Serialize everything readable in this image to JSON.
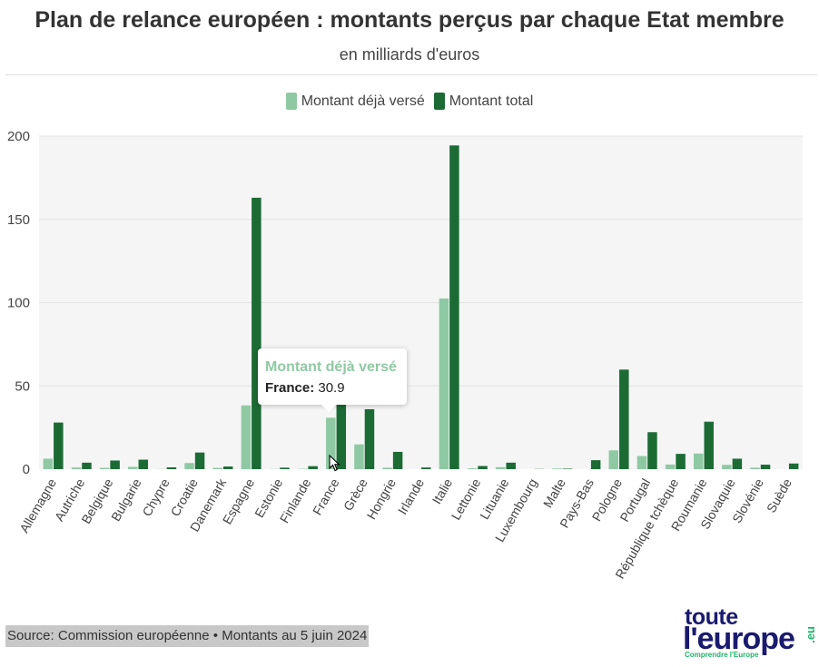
{
  "title": "Plan de relance européen : montants perçus par chaque Etat membre",
  "subtitle": "en milliards d'euros",
  "legend": [
    {
      "label": "Montant déjà versé",
      "color": "#8fc9a3"
    },
    {
      "label": "Montant total",
      "color": "#1c6b35"
    }
  ],
  "tooltip": {
    "title": "Montant déjà versé",
    "country": "France:",
    "value": "30.9",
    "title_color": "#8fc9a3"
  },
  "source": "Source: Commission européenne • Montants au 5 juin 2024",
  "logo": {
    "line1": "toute",
    "line2": "l'europe",
    "tagline": "Comprendre l'Europe",
    "suffix": ".eu"
  },
  "chart_data": {
    "type": "bar",
    "ylim": [
      0,
      200
    ],
    "yticks": [
      0,
      50,
      100,
      150,
      200
    ],
    "grid": true,
    "legend_position": "top-center",
    "categories": [
      "Allemagne",
      "Autriche",
      "Belgique",
      "Bulgarie",
      "Chypre",
      "Croatie",
      "Danemark",
      "Espagne",
      "Estonie",
      "Finlande",
      "France",
      "Grèce",
      "Hongrie",
      "Irlande",
      "Italie",
      "Lettonie",
      "Lituanie",
      "Luxembourg",
      "Malte",
      "Pays-Bas",
      "Pologne",
      "Portugal",
      "République tchèque",
      "Roumanie",
      "Slovaquie",
      "Slovénie",
      "Suède"
    ],
    "series": [
      {
        "name": "Montant déjà versé",
        "color": "#8fc9a3",
        "values": [
          6.3,
          1.0,
          0.8,
          1.4,
          0.1,
          3.7,
          0.8,
          38.3,
          0.1,
          0.2,
          30.9,
          14.9,
          0.9,
          0.0,
          102.5,
          0.5,
          1.2,
          0.0,
          0.4,
          0.0,
          11.3,
          7.9,
          2.8,
          9.4,
          2.6,
          0.9,
          0.0
        ]
      },
      {
        "name": "Montant total",
        "color": "#1c6b35",
        "values": [
          28.0,
          3.9,
          5.2,
          5.7,
          1.1,
          10.0,
          1.6,
          163.0,
          0.9,
          1.8,
          40.3,
          36.0,
          10.4,
          1.0,
          194.4,
          1.9,
          3.9,
          0.1,
          0.3,
          5.4,
          59.8,
          22.2,
          9.2,
          28.5,
          6.3,
          2.7,
          3.4
        ]
      }
    ]
  }
}
